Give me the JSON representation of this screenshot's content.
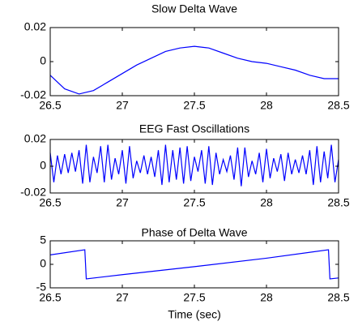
{
  "chart_data": [
    {
      "type": "line",
      "title": "Slow Delta Wave",
      "color": "#0000ff",
      "x": [
        26.5,
        26.6,
        26.7,
        26.8,
        26.9,
        27.0,
        27.1,
        27.2,
        27.3,
        27.4,
        27.5,
        27.6,
        27.7,
        27.8,
        27.9,
        28.0,
        28.1,
        28.2,
        28.3,
        28.4,
        28.5
      ],
      "values": [
        -0.008,
        -0.016,
        -0.019,
        -0.017,
        -0.012,
        -0.007,
        -0.002,
        0.002,
        0.006,
        0.008,
        0.009,
        0.008,
        0.005,
        0.002,
        0.0,
        -0.001,
        -0.003,
        -0.005,
        -0.008,
        -0.01,
        -0.01
      ],
      "xlim": [
        26.5,
        28.5
      ],
      "ylim": [
        -0.02,
        0.02
      ],
      "xticks": [
        26.5,
        27,
        27.5,
        28,
        28.5
      ],
      "yticks": [
        -0.02,
        0,
        0.02
      ]
    },
    {
      "type": "line",
      "title": "EEG Fast Oscillations",
      "color": "#0000ff",
      "x": [
        26.5,
        26.525,
        26.55,
        26.575,
        26.6,
        26.625,
        26.65,
        26.675,
        26.7,
        26.725,
        26.75,
        26.775,
        26.8,
        26.825,
        26.85,
        26.875,
        26.9,
        26.925,
        26.95,
        26.975,
        27.0,
        27.025,
        27.05,
        27.075,
        27.1,
        27.125,
        27.15,
        27.175,
        27.2,
        27.225,
        27.25,
        27.275,
        27.3,
        27.325,
        27.35,
        27.375,
        27.4,
        27.425,
        27.45,
        27.475,
        27.5,
        27.525,
        27.55,
        27.575,
        27.6,
        27.625,
        27.65,
        27.675,
        27.7,
        27.725,
        27.75,
        27.775,
        27.8,
        27.825,
        27.85,
        27.875,
        27.9,
        27.925,
        27.95,
        27.975,
        28.0,
        28.025,
        28.05,
        28.075,
        28.1,
        28.125,
        28.15,
        28.175,
        28.2,
        28.225,
        28.25,
        28.275,
        28.3,
        28.325,
        28.35,
        28.375,
        28.4,
        28.425,
        28.45,
        28.475,
        28.5
      ],
      "values": [
        0.01,
        -0.012,
        0.008,
        -0.006,
        0.009,
        -0.005,
        0.01,
        -0.004,
        0.012,
        -0.013,
        0.016,
        -0.012,
        0.007,
        -0.005,
        0.015,
        -0.012,
        0.016,
        -0.01,
        0.006,
        -0.006,
        0.012,
        -0.013,
        0.015,
        -0.009,
        0.004,
        -0.005,
        0.008,
        -0.006,
        0.007,
        -0.008,
        0.012,
        -0.014,
        0.016,
        -0.012,
        0.012,
        -0.01,
        0.014,
        -0.013,
        0.015,
        -0.011,
        0.007,
        -0.004,
        0.012,
        -0.013,
        0.015,
        -0.014,
        0.01,
        -0.006,
        0.005,
        -0.004,
        0.008,
        -0.01,
        0.014,
        -0.015,
        0.014,
        -0.008,
        0.004,
        -0.006,
        0.01,
        -0.012,
        0.013,
        -0.009,
        0.006,
        -0.004,
        0.009,
        -0.011,
        0.01,
        -0.006,
        0.005,
        -0.005,
        0.008,
        -0.006,
        0.012,
        -0.014,
        0.015,
        -0.012,
        0.011,
        -0.009,
        0.016,
        -0.012,
        0.005
      ],
      "xlim": [
        26.5,
        28.5
      ],
      "ylim": [
        -0.02,
        0.02
      ],
      "xticks": [
        26.5,
        27,
        27.5,
        28,
        28.5
      ],
      "yticks": [
        -0.02,
        0,
        0.02
      ]
    },
    {
      "type": "line",
      "title": "Phase of Delta Wave",
      "xlabel": "Time (sec)",
      "color": "#0000ff",
      "x": [
        26.5,
        26.74,
        26.75,
        27.0,
        27.5,
        28.0,
        28.43,
        28.44,
        28.5
      ],
      "values": [
        2,
        3.1,
        -3.1,
        -2.2,
        -0.5,
        1.3,
        3.1,
        -3.1,
        -2.9
      ],
      "xlim": [
        26.5,
        28.5
      ],
      "ylim": [
        -5,
        5
      ],
      "xticks": [
        26.5,
        27,
        27.5,
        28,
        28.5
      ],
      "yticks": [
        -5,
        0,
        5
      ]
    }
  ]
}
